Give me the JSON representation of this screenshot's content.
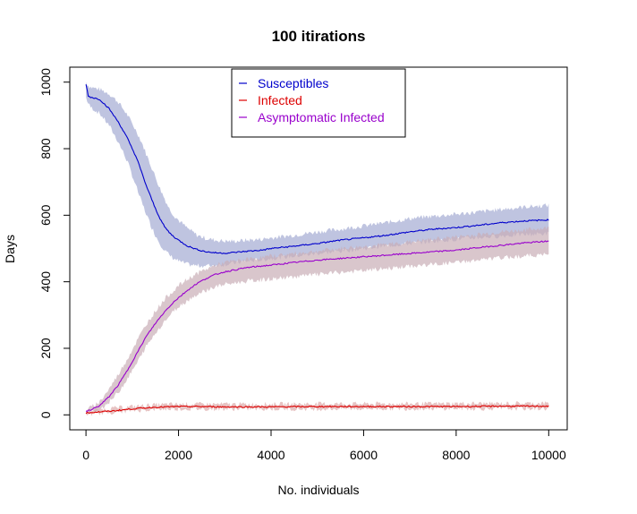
{
  "chart_data": {
    "type": "line",
    "title": "100  itirations",
    "xlabel": "No. individuals",
    "ylabel": "Days",
    "xlim": [
      -350,
      10400
    ],
    "ylim": [
      -45,
      1045
    ],
    "x_ticks": [
      0,
      2000,
      4000,
      6000,
      8000,
      10000
    ],
    "y_ticks": [
      0,
      200,
      400,
      600,
      800,
      1000
    ],
    "legend_position": "top-center",
    "grid": false,
    "series": [
      {
        "name": "Susceptibles",
        "color": "#0000cc",
        "band_color": "#aab0d6",
        "x": [
          0,
          50,
          100,
          300,
          500,
          700,
          900,
          1000,
          1100,
          1200,
          1300,
          1400,
          1500,
          1600,
          1700,
          1800,
          1900,
          2000,
          2200,
          2400,
          2600,
          2800,
          3000,
          3200,
          3500,
          3800,
          4000,
          4500,
          5000,
          5500,
          6000,
          6500,
          7000,
          7500,
          8000,
          8500,
          9000,
          9500,
          10000
        ],
        "mean": [
          995,
          958,
          955,
          948,
          920,
          880,
          830,
          800,
          770,
          730,
          690,
          655,
          620,
          590,
          565,
          548,
          535,
          525,
          507,
          497,
          490,
          487,
          486,
          488,
          492,
          495,
          500,
          507,
          515,
          525,
          532,
          540,
          550,
          558,
          563,
          570,
          578,
          583,
          586
        ],
        "lower": [
          955,
          935,
          925,
          905,
          870,
          820,
          760,
          720,
          680,
          640,
          605,
          570,
          540,
          515,
          495,
          480,
          470,
          462,
          452,
          448,
          448,
          450,
          452,
          456,
          462,
          466,
          470,
          477,
          485,
          492,
          500,
          508,
          515,
          522,
          528,
          533,
          538,
          542,
          545
        ],
        "upper": [
          1000,
          990,
          985,
          978,
          965,
          940,
          900,
          875,
          850,
          820,
          785,
          750,
          715,
          680,
          650,
          620,
          600,
          585,
          560,
          540,
          530,
          525,
          522,
          522,
          525,
          528,
          532,
          540,
          550,
          558,
          568,
          578,
          590,
          597,
          603,
          610,
          618,
          625,
          630
        ]
      },
      {
        "name": "Infected",
        "color": "#dd0000",
        "band_color": "#ddaaaa",
        "x": [
          0,
          100,
          300,
          600,
          1000,
          1500,
          2000,
          2500,
          3000,
          4000,
          5000,
          6000,
          7000,
          8000,
          9000,
          10000
        ],
        "mean": [
          5,
          7,
          9,
          12,
          18,
          23,
          25,
          25,
          24,
          24,
          25,
          25,
          25,
          25,
          26,
          26
        ],
        "lower": [
          1,
          3,
          5,
          8,
          13,
          17,
          18,
          18,
          18,
          18,
          18,
          19,
          19,
          19,
          19,
          19
        ],
        "upper": [
          12,
          14,
          16,
          20,
          25,
          30,
          32,
          32,
          32,
          32,
          33,
          33,
          33,
          34,
          34,
          35
        ]
      },
      {
        "name": "Asymptomatic Infected",
        "color": "#9900cc",
        "band_color": "#c9aeb6",
        "x": [
          0,
          100,
          300,
          500,
          700,
          900,
          1100,
          1300,
          1500,
          1700,
          1900,
          2000,
          2200,
          2400,
          2600,
          2800,
          3000,
          3500,
          4000,
          4500,
          5000,
          5500,
          6000,
          6500,
          7000,
          7500,
          8000,
          8500,
          9000,
          9500,
          10000
        ],
        "mean": [
          10,
          15,
          28,
          55,
          90,
          135,
          185,
          235,
          275,
          310,
          340,
          352,
          375,
          395,
          410,
          422,
          430,
          443,
          450,
          458,
          465,
          470,
          475,
          480,
          485,
          490,
          495,
          503,
          510,
          517,
          522
        ],
        "lower": [
          5,
          8,
          18,
          38,
          68,
          110,
          155,
          205,
          245,
          282,
          312,
          325,
          345,
          362,
          375,
          385,
          392,
          402,
          408,
          415,
          422,
          428,
          433,
          440,
          446,
          452,
          458,
          465,
          472,
          478,
          482
        ],
        "upper": [
          16,
          22,
          40,
          78,
          122,
          170,
          222,
          272,
          312,
          348,
          375,
          388,
          408,
          425,
          438,
          450,
          458,
          468,
          477,
          485,
          492,
          500,
          506,
          512,
          520,
          528,
          535,
          542,
          550,
          556,
          562
        ]
      }
    ]
  }
}
